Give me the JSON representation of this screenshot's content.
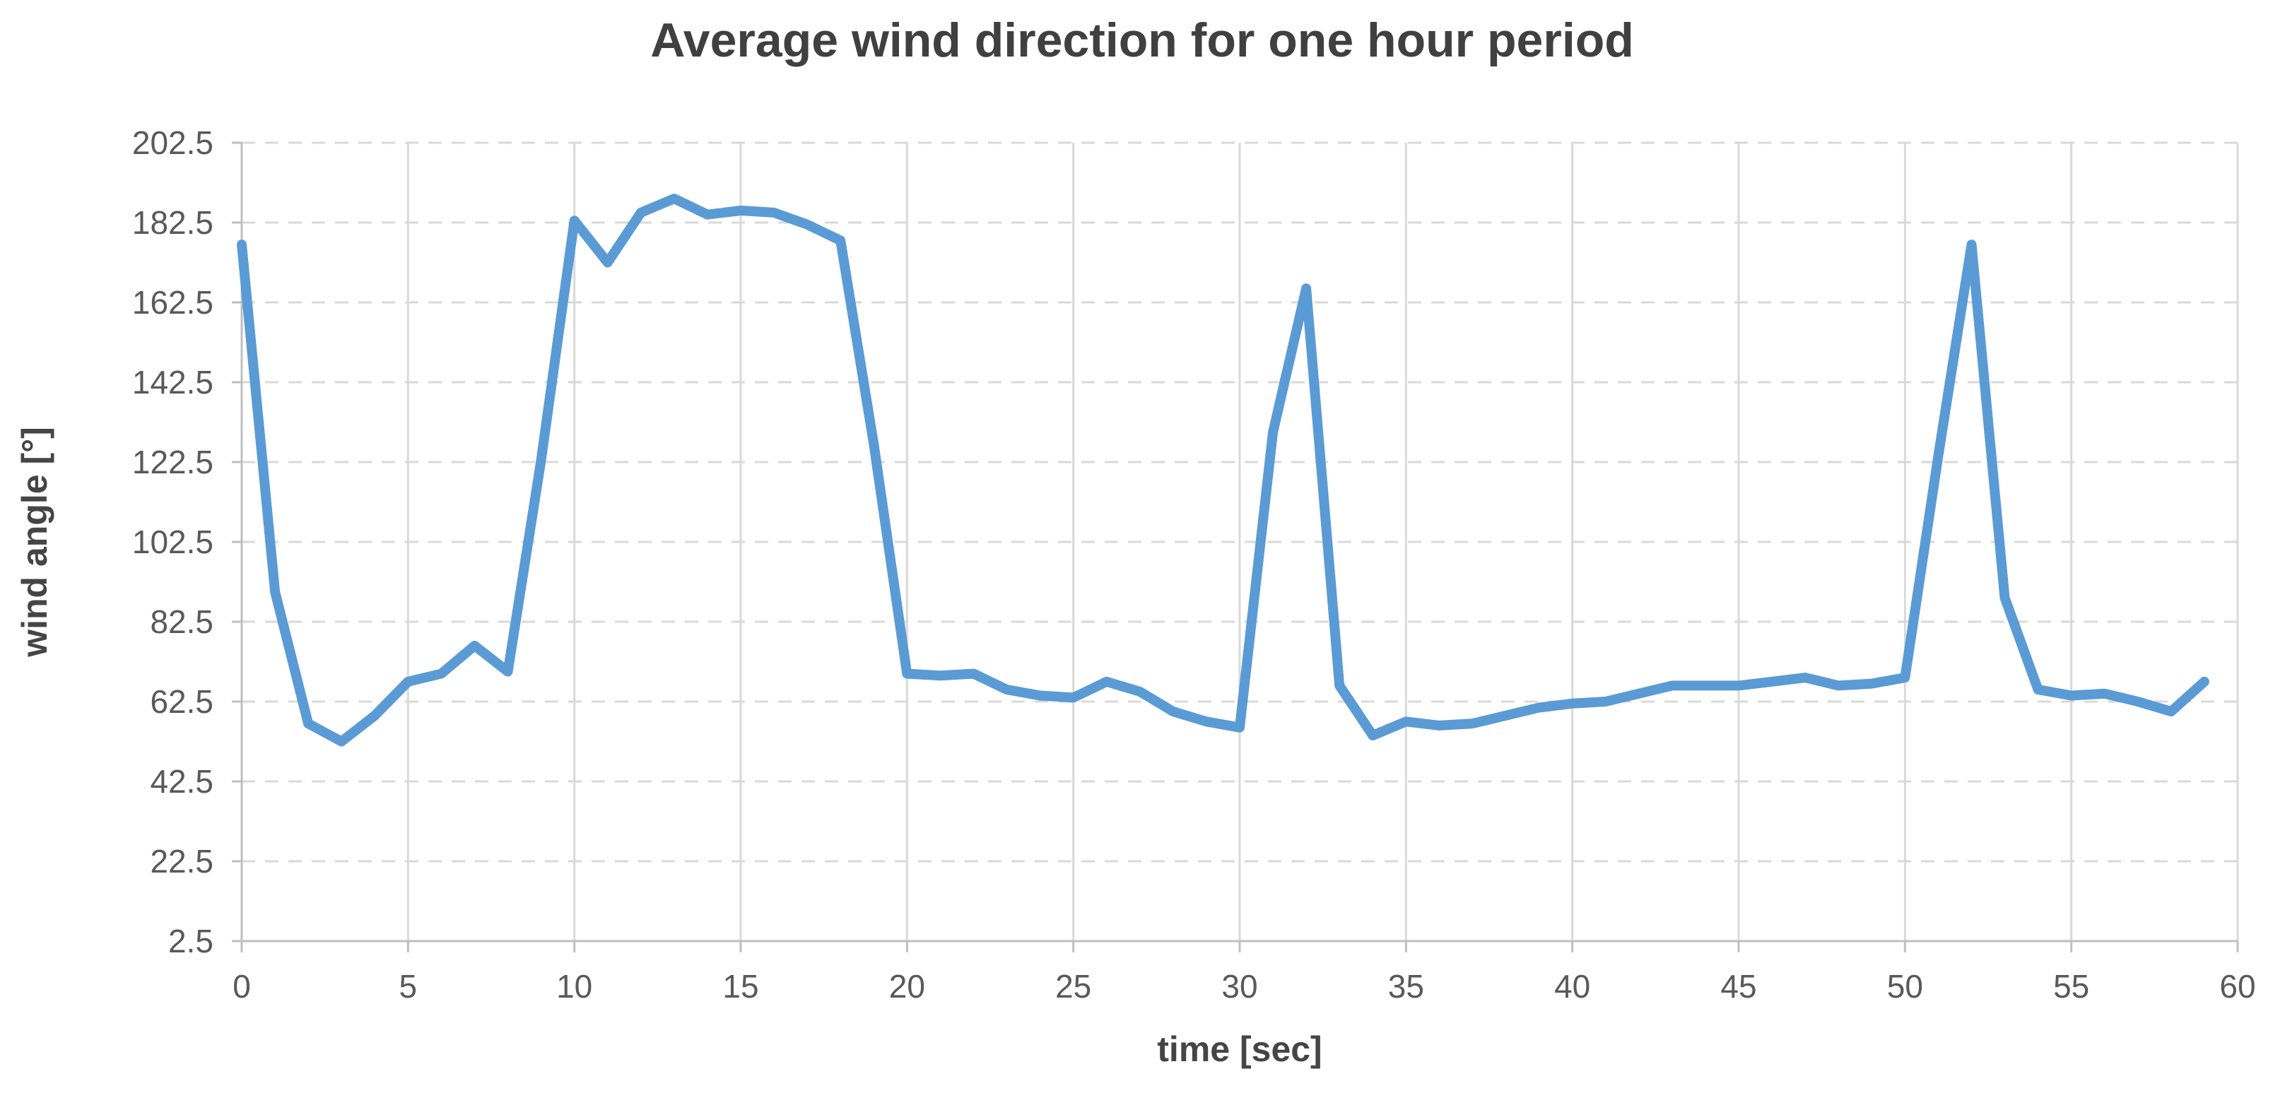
{
  "title": "Average wind direction for one hour period",
  "colors": {
    "line": "#5B9BD5",
    "gridline": "#D9D9D9",
    "axis_line": "#BFBFBF",
    "title_text": "#404040",
    "label_text": "#595959"
  },
  "chart_data": {
    "type": "line",
    "title": "Average wind direction for one hour period",
    "xlabel": "time [sec]",
    "ylabel": "wind angle [°]",
    "xlim": [
      0,
      60
    ],
    "ylim": [
      2.5,
      202.5
    ],
    "x_ticks": [
      0,
      5,
      10,
      15,
      20,
      25,
      30,
      35,
      40,
      45,
      50,
      55,
      60
    ],
    "y_ticks": [
      2.5,
      22.5,
      42.5,
      62.5,
      82.5,
      102.5,
      122.5,
      142.5,
      162.5,
      182.5,
      202.5
    ],
    "grid": "horizontal dashed, vertical solid, light gray",
    "legend_position": "none",
    "series_name": "average wind direction",
    "x": [
      0,
      1,
      2,
      3,
      4,
      5,
      6,
      7,
      8,
      9,
      10,
      11,
      12,
      13,
      14,
      15,
      16,
      17,
      18,
      19,
      20,
      21,
      22,
      23,
      24,
      25,
      26,
      27,
      28,
      29,
      30,
      31,
      32,
      33,
      34,
      35,
      36,
      37,
      38,
      39,
      40,
      41,
      42,
      43,
      44,
      45,
      46,
      47,
      48,
      49,
      50,
      51,
      52,
      53,
      54,
      55,
      56,
      57,
      58,
      59
    ],
    "values": [
      177,
      90,
      57,
      52.5,
      59,
      67.5,
      69.5,
      76.5,
      70,
      123,
      183,
      172.5,
      185,
      188.5,
      184.5,
      185.5,
      185,
      182,
      178,
      127,
      69.5,
      69,
      69.5,
      65.5,
      64,
      63.5,
      67.5,
      65,
      60,
      57.5,
      56,
      130,
      166,
      66.5,
      54,
      57.5,
      56.5,
      57,
      59,
      61,
      62,
      62.5,
      64.5,
      66.5,
      66.5,
      66.5,
      67.5,
      68.5,
      66.5,
      67,
      68.5,
      124,
      177,
      88.5,
      65.5,
      64,
      64.5,
      62.5,
      60,
      67.5
    ]
  }
}
